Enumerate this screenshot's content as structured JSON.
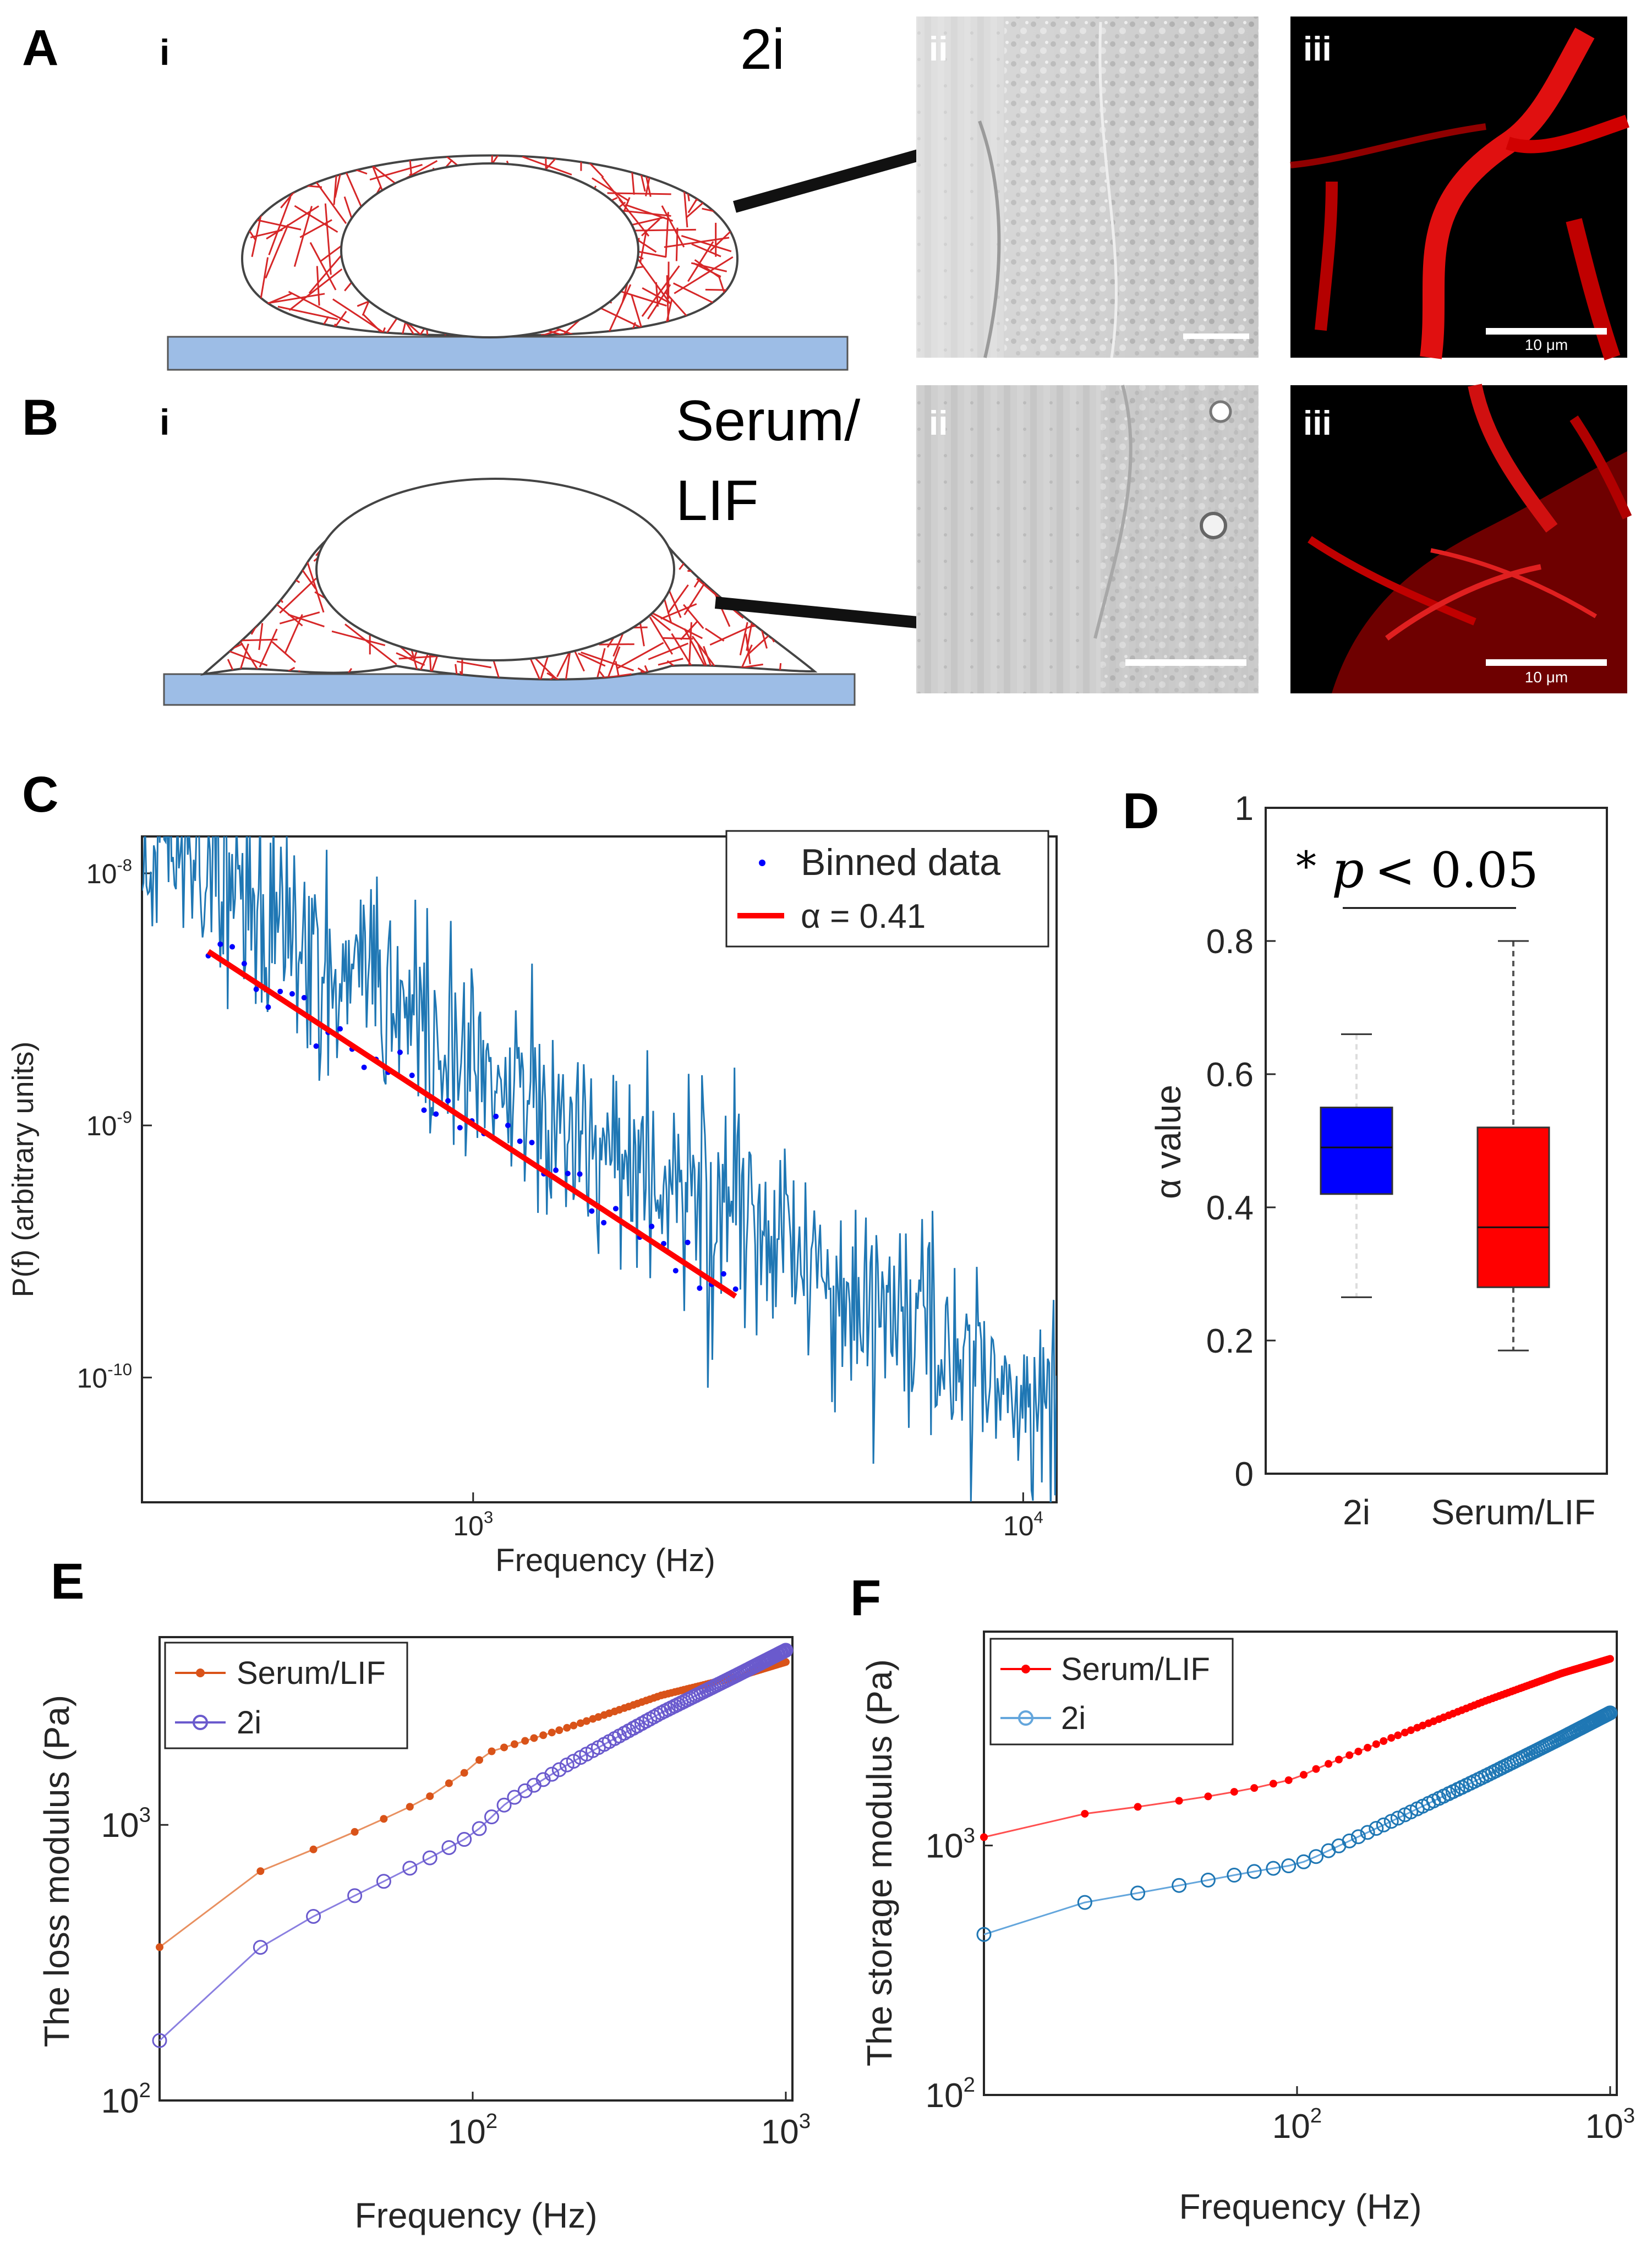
{
  "panel_labels": {
    "A": "A",
    "B": "B",
    "C": "C",
    "D": "D",
    "E": "E",
    "F": "F"
  },
  "sub_labels": {
    "i": "i",
    "ii": "ii",
    "iii": "iii"
  },
  "conditions": {
    "two_i": "2i",
    "serum_line1": "Serum/",
    "serum_line2": "LIF"
  },
  "scale_bar_text": "10 μm",
  "colors": {
    "fiber": "#d62728",
    "substrate": "#9dbde6",
    "series_blue": "#1f77b4",
    "fit_red": "#ff0000",
    "box_blue": "#0000ff",
    "box_red": "#ff0000",
    "serum_orange": "#d95319",
    "twoi_purple": "#6a5acd"
  },
  "chart_data": [
    {
      "id": "C",
      "type": "line",
      "xlabel": "Frequency (Hz)",
      "ylabel": "P(f) (arbitrary units)",
      "xscale": "log",
      "yscale": "log",
      "xlim": [
        250,
        11500
      ],
      "ylim": [
        3.2e-11,
        1.4e-08
      ],
      "x_ticks": [
        {
          "v": 1000,
          "base": "10",
          "exp": "3"
        },
        {
          "v": 10000,
          "base": "10",
          "exp": "4"
        }
      ],
      "y_ticks": [
        {
          "v": 1e-08,
          "base": "10",
          "exp": "-8"
        },
        {
          "v": 1e-09,
          "base": "10",
          "exp": "-9"
        },
        {
          "v": 1e-10,
          "base": "10",
          "exp": "-10"
        }
      ],
      "legend": {
        "position": "top-right",
        "binned": "Binned data",
        "fit": "α = 0.41"
      },
      "power_spectrum": {
        "f_start": 250,
        "f_end": 11500,
        "points": 620,
        "amp_at_250": 1.3e-08,
        "slope": -1.38,
        "jitter_decades": 0.22
      },
      "binned": {
        "f_start": 330,
        "f_end": 3000,
        "count": 45,
        "amp_at_330": 5e-09,
        "slope": -1.44
      },
      "fit": {
        "alpha": 0.41,
        "x": [
          330,
          3000
        ],
        "y": [
          4.9e-09,
          2.1e-10
        ]
      }
    },
    {
      "id": "D",
      "type": "box",
      "ylabel": "α value",
      "ylim": [
        0,
        1
      ],
      "y_ticks": [
        "0",
        "0.2",
        "0.4",
        "0.6",
        "0.8",
        "1"
      ],
      "categories": [
        "2i",
        "Serum/LIF"
      ],
      "boxes": [
        {
          "name": "2i",
          "min": 0.265,
          "q1": 0.42,
          "median": 0.49,
          "q3": 0.55,
          "max": 0.66
        },
        {
          "name": "Serum/LIF",
          "min": 0.185,
          "q1": 0.28,
          "median": 0.37,
          "q3": 0.52,
          "max": 0.8
        }
      ],
      "annotation": {
        "star": "*",
        "p": "p",
        "rest": " < 0.05"
      }
    },
    {
      "id": "E",
      "type": "line",
      "xlabel": "Frequency (Hz)",
      "ylabel": "The loss modulus (Pa)",
      "xscale": "log",
      "yscale": "log",
      "xlim": [
        10,
        1050
      ],
      "ylim": [
        100,
        4800
      ],
      "x_ticks": [
        {
          "v": 100,
          "base": "10",
          "exp": "2"
        },
        {
          "v": 1000,
          "base": "10",
          "exp": "3"
        }
      ],
      "y_ticks": [
        {
          "v": 100,
          "base": "10",
          "exp": "2"
        },
        {
          "v": 1000,
          "base": "10",
          "exp": "3"
        }
      ],
      "legend": {
        "position": "top-left"
      },
      "series": [
        {
          "name": "Serum/LIF",
          "marker": "dot",
          "x": [
            10,
            13,
            18,
            25,
            35,
            50,
            70,
            100,
            110,
            200,
            400,
            700,
            1000
          ],
          "y": [
            360,
            510,
            630,
            740,
            860,
            1030,
            1230,
            1620,
            1820,
            2250,
            2950,
            3450,
            3900
          ]
        },
        {
          "name": "2i",
          "marker": "circle",
          "x": [
            10,
            13,
            18,
            25,
            35,
            50,
            70,
            100,
            130,
            200,
            400,
            700,
            1000
          ],
          "y": [
            165,
            245,
            320,
            410,
            500,
            610,
            740,
            920,
            1220,
            1650,
            2550,
            3500,
            4300
          ]
        }
      ]
    },
    {
      "id": "F",
      "type": "line",
      "xlabel": "Frequency (Hz)",
      "ylabel": "The storage modulus (Pa)",
      "xscale": "log",
      "yscale": "log",
      "xlim": [
        10,
        1050
      ],
      "ylim": [
        100,
        7200
      ],
      "x_ticks": [
        {
          "v": 100,
          "base": "10",
          "exp": "2"
        },
        {
          "v": 1000,
          "base": "10",
          "exp": "3"
        }
      ],
      "y_ticks": [
        {
          "v": 100,
          "base": "10",
          "exp": "2"
        },
        {
          "v": 1000,
          "base": "10",
          "exp": "3"
        }
      ],
      "legend": {
        "position": "top-left"
      },
      "series": [
        {
          "name": "Serum/LIF",
          "marker": "dot",
          "x": [
            10,
            12,
            15,
            20,
            30,
            50,
            70,
            100,
            110,
            200,
            400,
            700,
            1000
          ],
          "y": [
            1080,
            1180,
            1260,
            1330,
            1420,
            1560,
            1680,
            1860,
            1980,
            2700,
            3800,
            4900,
            5600
          ]
        },
        {
          "name": "2i",
          "marker": "circle",
          "x": [
            10,
            12,
            15,
            20,
            30,
            50,
            70,
            100,
            110,
            200,
            400,
            700,
            1000
          ],
          "y": [
            440,
            510,
            545,
            585,
            640,
            720,
            780,
            840,
            880,
            1250,
            1900,
            2700,
            3400
          ]
        }
      ]
    }
  ]
}
